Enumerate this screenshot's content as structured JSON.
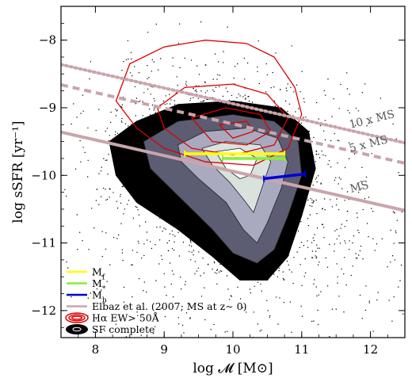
{
  "chart_data": {
    "type": "scatter",
    "xlabel": "log 𝓜 [M⊙]",
    "ylabel": "log sSFR [yr⁻¹]",
    "xlim": [
      7.5,
      12.5
    ],
    "ylim": [
      -12.4,
      -7.5
    ],
    "xticks": [
      {
        "value": 8,
        "label": "8"
      },
      {
        "value": 9,
        "label": "9"
      },
      {
        "value": 10,
        "label": "10"
      },
      {
        "value": 11,
        "label": "11"
      },
      {
        "value": 12,
        "label": "12"
      }
    ],
    "yticks": [
      {
        "value": -8,
        "label": "−8"
      },
      {
        "value": -9,
        "label": "−9"
      },
      {
        "value": -10,
        "label": "−10"
      },
      {
        "value": -11,
        "label": "−11"
      },
      {
        "value": -12,
        "label": "−12"
      }
    ],
    "lines": [
      {
        "name": "MS",
        "label": "MS",
        "color": "#c9a5ab",
        "style": "solid",
        "x": [
          7.5,
          12.5
        ],
        "y": [
          -9.36,
          -10.52
        ]
      },
      {
        "name": "5 x MS",
        "label": "5 x MS",
        "color": "#c9a5ab",
        "style": "dashed",
        "x": [
          7.5,
          12.5
        ],
        "y": [
          -8.66,
          -9.82
        ]
      },
      {
        "name": "10 x MS",
        "label": "10 x MS",
        "color": "#c9a5ab",
        "style": "dotted",
        "x": [
          7.5,
          12.5
        ],
        "y": [
          -8.36,
          -9.52
        ]
      }
    ],
    "segments": [
      {
        "name": "M_f",
        "color": "#ffff00",
        "x": [
          9.3,
          10.75
        ],
        "y": [
          -9.68,
          -9.68
        ]
      },
      {
        "name": "M_*",
        "color": "#88ee33",
        "x": [
          9.85,
          10.75
        ],
        "y": [
          -9.75,
          -9.75
        ]
      },
      {
        "name": "M_b",
        "color": "#0000dd",
        "x": [
          10.45,
          11.05
        ],
        "y": [
          -10.05,
          -9.98
        ]
      }
    ],
    "legend": {
      "placement": "bottom-left",
      "entries": [
        {
          "label": "M",
          "sub": "f",
          "color": "#ffff00",
          "kind": "line"
        },
        {
          "label": "M",
          "sub": "*",
          "color": "#88ee33",
          "kind": "line"
        },
        {
          "label": "M",
          "sub": "b",
          "color": "#0000dd",
          "kind": "line"
        },
        {
          "label": "Elbaz et al. (2007; MS at z∼ 0)",
          "sub": "",
          "color": "#c9a5ab",
          "kind": "line"
        },
        {
          "label": "Hα EW> 50Å",
          "sub": "",
          "color": "#dd0000",
          "kind": "contour-red"
        },
        {
          "label": "SF complete",
          "sub": "",
          "color": "#000000",
          "kind": "contour-black"
        }
      ]
    },
    "density_contours": {
      "name": "SF complete",
      "levels": [
        {
          "color": "#000000",
          "points": [
            [
              8.2,
              -9.5
            ],
            [
              8.6,
              -9.2
            ],
            [
              9.2,
              -8.95
            ],
            [
              10.0,
              -8.9
            ],
            [
              10.7,
              -9.0
            ],
            [
              11.1,
              -9.35
            ],
            [
              11.2,
              -9.9
            ],
            [
              11.0,
              -10.6
            ],
            [
              10.8,
              -11.2
            ],
            [
              10.5,
              -11.55
            ],
            [
              10.1,
              -11.55
            ],
            [
              9.7,
              -11.2
            ],
            [
              9.2,
              -10.8
            ],
            [
              8.6,
              -10.4
            ],
            [
              8.3,
              -10.0
            ]
          ]
        },
        {
          "color": "#5c5c72",
          "points": [
            [
              8.7,
              -9.5
            ],
            [
              9.2,
              -9.2
            ],
            [
              10.0,
              -9.1
            ],
            [
              10.6,
              -9.2
            ],
            [
              10.95,
              -9.5
            ],
            [
              11.0,
              -10.0
            ],
            [
              10.8,
              -10.6
            ],
            [
              10.6,
              -11.1
            ],
            [
              10.35,
              -11.3
            ],
            [
              10.0,
              -11.15
            ],
            [
              9.7,
              -10.8
            ],
            [
              9.2,
              -10.3
            ],
            [
              8.8,
              -9.9
            ]
          ]
        },
        {
          "color": "#a9a9bf",
          "points": [
            [
              9.2,
              -9.55
            ],
            [
              9.6,
              -9.35
            ],
            [
              10.2,
              -9.3
            ],
            [
              10.65,
              -9.45
            ],
            [
              10.8,
              -9.8
            ],
            [
              10.7,
              -10.2
            ],
            [
              10.5,
              -10.7
            ],
            [
              10.35,
              -11.0
            ],
            [
              10.15,
              -10.8
            ],
            [
              9.9,
              -10.4
            ],
            [
              9.5,
              -10.05
            ],
            [
              9.25,
              -9.8
            ]
          ]
        },
        {
          "color": "#d9e2dd",
          "points": [
            [
              9.55,
              -9.6
            ],
            [
              9.9,
              -9.5
            ],
            [
              10.4,
              -9.55
            ],
            [
              10.55,
              -9.8
            ],
            [
              10.45,
              -10.1
            ],
            [
              10.3,
              -10.55
            ],
            [
              10.15,
              -10.35
            ],
            [
              9.95,
              -10.1
            ],
            [
              9.7,
              -9.85
            ]
          ]
        },
        {
          "color": "#ffffff",
          "points": [
            [
              9.75,
              -9.65
            ],
            [
              10.1,
              -9.6
            ],
            [
              10.35,
              -9.75
            ],
            [
              10.25,
              -10.0
            ],
            [
              10.1,
              -10.05
            ],
            [
              9.9,
              -9.9
            ]
          ]
        }
      ]
    },
    "halpha_contours": {
      "name": "Hα EW> 50Å",
      "color": "#dd0000",
      "levels": [
        [
          [
            8.3,
            -8.9
          ],
          [
            8.5,
            -8.35
          ],
          [
            9.0,
            -8.1
          ],
          [
            9.6,
            -8.0
          ],
          [
            10.2,
            -8.05
          ],
          [
            10.6,
            -8.25
          ],
          [
            10.9,
            -8.7
          ],
          [
            11.0,
            -9.1
          ],
          [
            10.8,
            -9.6
          ],
          [
            10.3,
            -9.85
          ],
          [
            9.6,
            -9.8
          ],
          [
            9.0,
            -9.6
          ],
          [
            8.6,
            -9.3
          ]
        ],
        [
          [
            8.9,
            -9.0
          ],
          [
            9.3,
            -8.7
          ],
          [
            10.0,
            -8.65
          ],
          [
            10.5,
            -8.8
          ],
          [
            10.8,
            -9.15
          ],
          [
            10.6,
            -9.55
          ],
          [
            10.0,
            -9.7
          ],
          [
            9.4,
            -9.6
          ],
          [
            9.0,
            -9.3
          ]
        ],
        [
          [
            9.4,
            -9.15
          ],
          [
            9.9,
            -9.0
          ],
          [
            10.4,
            -9.1
          ],
          [
            10.55,
            -9.35
          ],
          [
            10.2,
            -9.55
          ],
          [
            9.7,
            -9.5
          ]
        ],
        [
          [
            9.8,
            -9.25
          ],
          [
            10.2,
            -9.2
          ],
          [
            10.3,
            -9.35
          ],
          [
            10.0,
            -9.45
          ]
        ]
      ]
    },
    "background_points": {
      "name": "SF complete",
      "color": "#000000",
      "count": 1800,
      "x_range": [
        7.5,
        12.5
      ],
      "y_range": [
        -12.4,
        -7.5
      ]
    }
  }
}
